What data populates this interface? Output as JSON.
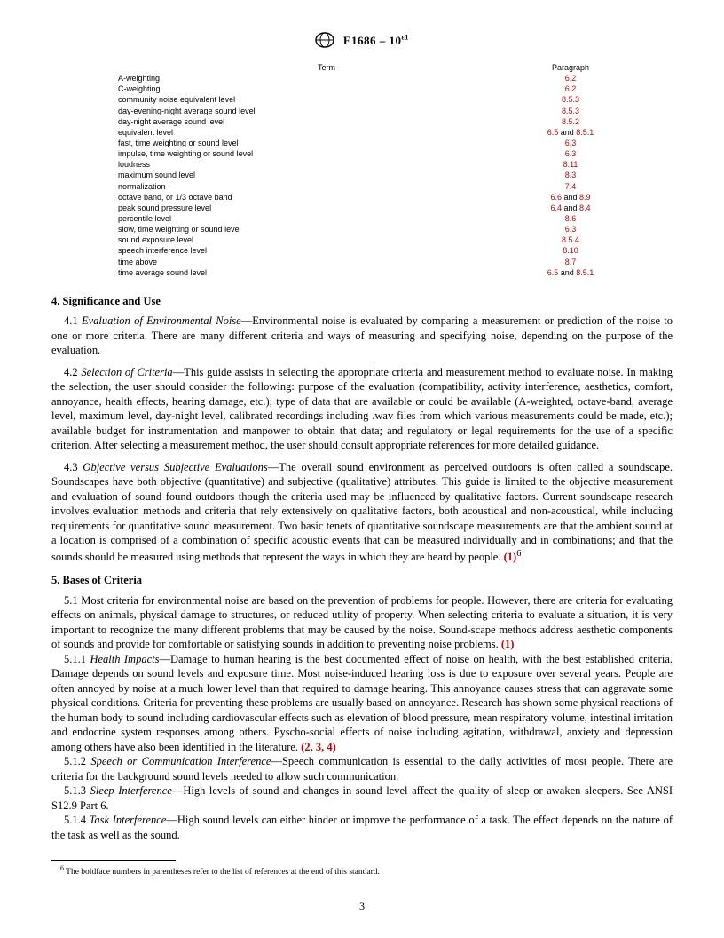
{
  "header": {
    "designation": "E1686 – 10",
    "epsilon": "ε1"
  },
  "term_table": {
    "columns": {
      "term": "Term",
      "paragraph": "Paragraph"
    },
    "rows": [
      {
        "term": "A-weighting",
        "paragraph_parts": [
          "6.2"
        ],
        "joiner": ""
      },
      {
        "term": "C-weighting",
        "paragraph_parts": [
          "6.2"
        ],
        "joiner": ""
      },
      {
        "term": "community noise equivalent level",
        "paragraph_parts": [
          "8.5.3"
        ],
        "joiner": ""
      },
      {
        "term": "day-evening-night average sound level",
        "paragraph_parts": [
          "8.5.3"
        ],
        "joiner": ""
      },
      {
        "term": "day-night average sound level",
        "paragraph_parts": [
          "8.5.2"
        ],
        "joiner": ""
      },
      {
        "term": "equivalent level",
        "paragraph_parts": [
          "6.5",
          "8.5.1"
        ],
        "joiner": " and "
      },
      {
        "term": "fast, time weighting or sound level",
        "paragraph_parts": [
          "6.3"
        ],
        "joiner": ""
      },
      {
        "term": "impulse, time weighting or sound level",
        "paragraph_parts": [
          "6.3"
        ],
        "joiner": ""
      },
      {
        "term": "loudness",
        "paragraph_parts": [
          "8.11"
        ],
        "joiner": ""
      },
      {
        "term": "maximum sound level",
        "paragraph_parts": [
          "8.3"
        ],
        "joiner": ""
      },
      {
        "term": "normalization",
        "paragraph_parts": [
          "7.4"
        ],
        "joiner": ""
      },
      {
        "term": "octave band, or 1/3 octave band",
        "paragraph_parts": [
          "6.6",
          "8.9"
        ],
        "joiner": " and "
      },
      {
        "term": "peak sound pressure level",
        "paragraph_parts": [
          "6.4",
          "8.4"
        ],
        "joiner": " and "
      },
      {
        "term": "percentile level",
        "paragraph_parts": [
          "8.6"
        ],
        "joiner": ""
      },
      {
        "term": "slow, time weighting or sound level",
        "paragraph_parts": [
          "6.3"
        ],
        "joiner": ""
      },
      {
        "term": "sound exposure level",
        "paragraph_parts": [
          "8.5.4"
        ],
        "joiner": ""
      },
      {
        "term": "speech interference level",
        "paragraph_parts": [
          "8.10"
        ],
        "joiner": ""
      },
      {
        "term": "time above",
        "paragraph_parts": [
          "8.7"
        ],
        "joiner": ""
      },
      {
        "term": "time average sound level",
        "paragraph_parts": [
          "6.5",
          "8.5.1"
        ],
        "joiner": " and "
      }
    ]
  },
  "section4": {
    "heading": "4.  Significance and Use",
    "p1_lead": "4.1 ",
    "p1_head": "Evaluation of Environmental Noise",
    "p1_body": "—Environmental noise is evaluated by comparing a measurement or prediction of the noise to one or more criteria. There are many different criteria and ways of measuring and specifying noise, depending on the purpose of the evaluation.",
    "p2_lead": "4.2 ",
    "p2_head": "Selection of Criteria",
    "p2_body": "—This guide assists in selecting the appropriate criteria and measurement method to evaluate noise. In making the selection, the user should consider the following: purpose of the evaluation (compatibility, activity interference, aesthetics, comfort, annoyance, health effects, hearing damage, etc.); type of data that are available or could be available (A-weighted, octave-band, average level, maximum level, day-night level, calibrated recordings including .wav files from which various measurements could be made, etc.); available budget for instrumentation and manpower to obtain that data; and regulatory or legal requirements for the use of a specific criterion. After selecting a measurement method, the user should consult appropriate references for more detailed guidance.",
    "p3_lead": "4.3 ",
    "p3_head": "Objective versus Subjective Evaluations",
    "p3_body": "—The overall sound environment as perceived outdoors is often called a soundscape. Soundscapes have both objective (quantitative) and subjective (qualitative) attributes. This guide is limited to the objective measurement and evaluation of sound found outdoors though the criteria used may be influenced by qualitative factors. Current soundscape research involves evaluation methods and criteria that rely extensively on qualitative factors, both acoustical and non-acoustical, while including requirements for quantitative sound measurement. Two basic tenets of quantitative soundscape measurements are that the ambient sound at a location is comprised of a combination of specific acoustic events that can be measured individually and in combinations; and that the sounds should be measured using methods that represent the ways in which they are heard by people. ",
    "p3_ref": "(1)",
    "p3_sup": "6"
  },
  "section5": {
    "heading": "5.  Bases of Criteria",
    "p1_lead": "5.1 Most criteria for environmental noise are based on the prevention of problems for people. However, there are criteria for evaluating effects on animals, physical damage to structures, or reduced utility of property. When selecting criteria to evaluate a situation, it is very important to recognize the many different problems that may be caused by the noise. Sound-scape methods address aesthetic components of sounds and provide for comfortable or satisfying sounds in addition to preventing noise problems. ",
    "p1_ref": "(1)",
    "p511_lead": "5.1.1 ",
    "p511_head": "Health Impacts",
    "p511_body": "—Damage to human hearing is the best documented effect of noise on health, with the best established criteria. Damage depends on sound levels and exposure time. Most noise-induced hearing loss is due to exposure over several years. People are often annoyed by noise at a much lower level than that required to damage hearing. This annoyance causes stress that can aggravate some physical conditions. Criteria for preventing these problems are usually based on annoyance. Research has shown some physical reactions of the human body to sound including cardiovascular effects such as elevation of blood pressure, mean respiratory volume, intestinal irritation and endocrine system responses among others. Pyscho-social effects of noise including agitation, withdrawal, anxiety and depression among others have also been identified in the literature. ",
    "p511_ref": "(2, 3, 4)",
    "p512_lead": "5.1.2 ",
    "p512_head": "Speech or Communication Interference",
    "p512_body": "—Speech communication is essential to the daily activities of most people. There are criteria for the background sound levels needed to allow such communication.",
    "p513_lead": "5.1.3 ",
    "p513_head": "Sleep Interference",
    "p513_body": "—High levels of sound and changes in sound level affect the quality of sleep or awaken sleepers. See ANSI S12.9 Part 6.",
    "p514_lead": "5.1.4 ",
    "p514_head": "Task Interference",
    "p514_body": "—High sound levels can either hinder or improve the performance of a task. The effect depends on the nature of the task as well as the sound."
  },
  "footnote": {
    "marker": "6",
    "text": " The boldface numbers in parentheses refer to the list of references at the end of this standard."
  },
  "page_number": "3",
  "colors": {
    "ref_color": "#c60000",
    "text_color": "#000000",
    "bg_color": "#ffffff"
  }
}
